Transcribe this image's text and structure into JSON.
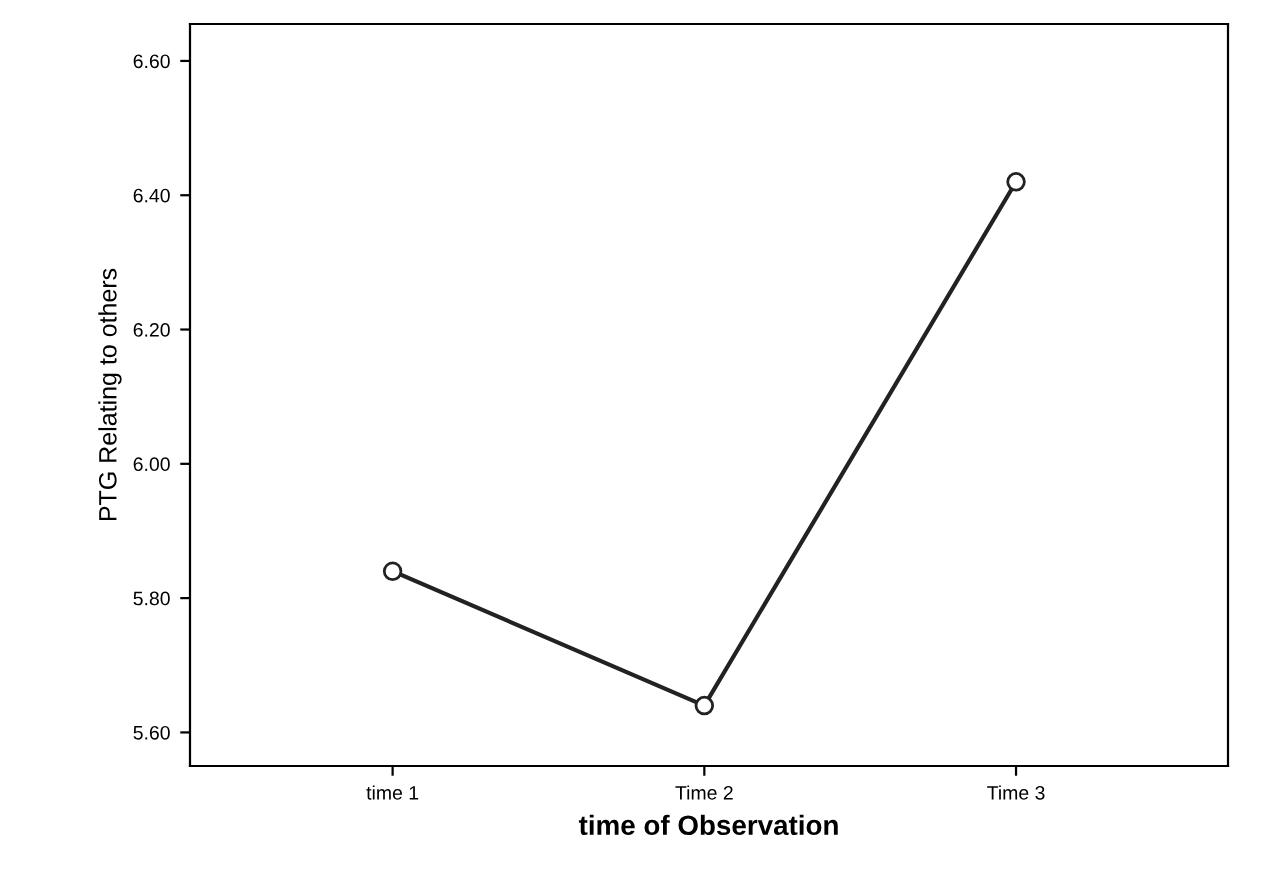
{
  "chart_data": {
    "type": "line",
    "xlabel": "time of Observation",
    "ylabel": "PTG Relating to others",
    "categories": [
      "time 1",
      "Time 2",
      "Time 3"
    ],
    "series": [
      {
        "color": "#222222",
        "values": [
          5.84,
          5.64,
          6.42
        ]
      }
    ],
    "ylim": [
      5.55,
      6.655
    ],
    "yticks": [
      {
        "value": 5.6,
        "label": "5.60"
      },
      {
        "value": 5.8,
        "label": "5.80"
      },
      {
        "value": 6.0,
        "label": "6.00"
      },
      {
        "value": 6.2,
        "label": "6.20"
      },
      {
        "value": 6.4,
        "label": "6.40"
      },
      {
        "value": 6.6,
        "label": "6.60"
      }
    ],
    "marker": "circle",
    "line_style": "solid",
    "grid": false,
    "legend": false
  }
}
